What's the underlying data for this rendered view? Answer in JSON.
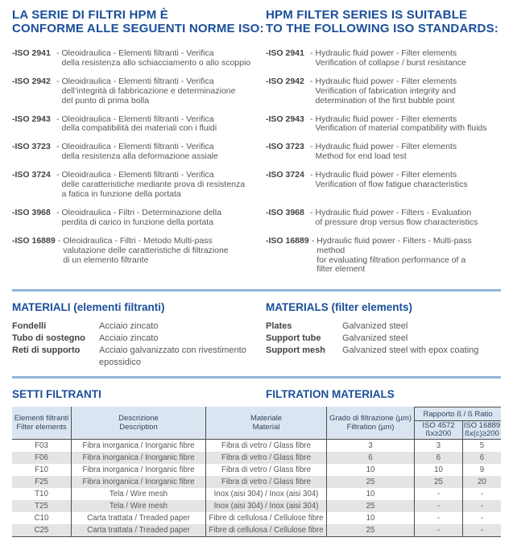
{
  "colors": {
    "accent_blue": "#1a4e9b",
    "text_gray": "#55575b",
    "label_dark": "#414348",
    "rule_blue": "#8fb6da",
    "table_header_bg": "#dbe5f1",
    "table_header_text": "#2e4560",
    "row_stripe": "#e4e4e5",
    "table_line": "#4d4d4d"
  },
  "standards": {
    "title_it": "LA SERIE DI FILTRI HPM È\nCONFORME ALLE SEGUENTI NORME ISO:",
    "title_en": "HPM FILTER SERIES IS SUITABLE\nTO THE FOLLOWING ISO STANDARDS:",
    "separator": "-",
    "items": [
      {
        "code": "-ISO 2941",
        "it": "Oleoidraulica - Elementi filtranti - Verifica\ndella resistenza allo schiacciamento o allo scoppio",
        "en": "Hydraulic fluid power - Filter elements\nVerification of collapse / burst resistance"
      },
      {
        "code": "-ISO 2942",
        "it": "Oleoidraulica - Elementi filtranti - Verifica\ndell’integrità di fabbricazione e determinazione\ndel punto di prima bolla",
        "en": "Hydraulic fluid power - Filter elements\nVerification of fabrication integrity and\ndetermination of the first bubble point"
      },
      {
        "code": "-ISO 2943",
        "it": "Oleoidraulica - Elementi filtranti - Verifica\ndella compatibilità dei materiali con i fluidi",
        "en": "Hydraulic fluid power - Filter elements\nVerification of material compatibility with fluids"
      },
      {
        "code": "-ISO 3723",
        "it": "Oleoidraulica - Elementi filtranti - Verifica\ndella resistenza alla deformazione assiale",
        "en": "Hydraulic fluid power - Filter elements\nMethod for end load test"
      },
      {
        "code": "-ISO 3724",
        "it": "Oleoidraulica - Elementi filtranti - Verifica\ndelle caratteristiche mediante prova di resistenza\na fatica in funzione della portata",
        "en": "Hydraulic fluid power - Filter elements\nVerification of flow fatigue characteristics"
      },
      {
        "code": "-ISO 3968",
        "it": "Oleoidraulica - Filtri - Determinazione della\nperdita di carico in funzione della portata",
        "en": "Hydraulic fluid power - Filters - Evaluation\nof pressure drop versus flow characteristics"
      },
      {
        "code": "-ISO 16889",
        "it": "Oleoidraulica - Filtri - Metodo Multi-pass\nvalutazione delle caratteristiche di filtrazione\ndi un elemento filtrante",
        "en": "Hydraulic fluid power - Filters - Multi-pass method\nfor evaluating filtration performance of a\nfilter element"
      }
    ]
  },
  "materials": {
    "title_it": "MATERIALI (elementi filtranti)",
    "title_en": "MATERIALS (filter elements)",
    "rows_it": [
      {
        "label": "Fondelli",
        "value": "Acciaio zincato"
      },
      {
        "label": "Tubo di sostegno",
        "value": "Acciaio zincato"
      },
      {
        "label": "Reti di supporto",
        "value": "Acciaio galvanizzato con rivestimento\nepossidico"
      }
    ],
    "rows_en": [
      {
        "label": "Plates",
        "value": "Galvanized steel"
      },
      {
        "label": "Support tube",
        "value": "Galvanized steel"
      },
      {
        "label": "Support mesh",
        "value": "Galvanized steel with epox coating"
      }
    ]
  },
  "filtration": {
    "title_it": "SETTI FILTRANTI",
    "title_en": "FILTRATION MATERIALS",
    "table": {
      "headers": {
        "col1": "Elementi filtranti\nFilter elements",
        "col2": "Descrizione\nDescription",
        "col3": "Materiale\nMaterial",
        "col4": "Grado di filtrazione (µm)\nFiltration (µm)",
        "ratio_group": "Rapporto ß / ß Ratio",
        "ratio_sub1": "ISO 4572\nßx≥200",
        "ratio_sub2": "ISO 16889\nßx(c)≥200"
      },
      "rows": [
        [
          "F03",
          "Fibra inorganica / Inorganic fibre",
          "Fibra di vetro / Glass fibre",
          "3",
          "3",
          "5"
        ],
        [
          "F06",
          "Fibra inorganica / Inorganic fibre",
          "Fibra di vetro / Glass fibre",
          "6",
          "6",
          "6"
        ],
        [
          "F10",
          "Fibra inorganica / Inorganic fibre",
          "Fibra di vetro / Glass fibre",
          "10",
          "10",
          "9"
        ],
        [
          "F25",
          "Fibra inorganica / Inorganic fibre",
          "Fibra di vetro / Glass fibre",
          "25",
          "25",
          "20"
        ],
        [
          "T10",
          "Tela / Wire mesh",
          "Inox (aisi 304) / Inox (aisi 304)",
          "10",
          "-",
          "-"
        ],
        [
          "T25",
          "Tela / Wire mesh",
          "Inox (aisi 304) / Inox (aisi 304)",
          "25",
          "-",
          "-"
        ],
        [
          "C10",
          "Carta trattata / Treaded paper",
          "Fibre di cellulosa / Cellulose fibre",
          "10",
          "-",
          "-"
        ],
        [
          "C25",
          "Carta trattata / Treaded paper",
          "Fibre di cellulosa / Cellulose fibre",
          "25",
          "-",
          "-"
        ]
      ]
    }
  }
}
